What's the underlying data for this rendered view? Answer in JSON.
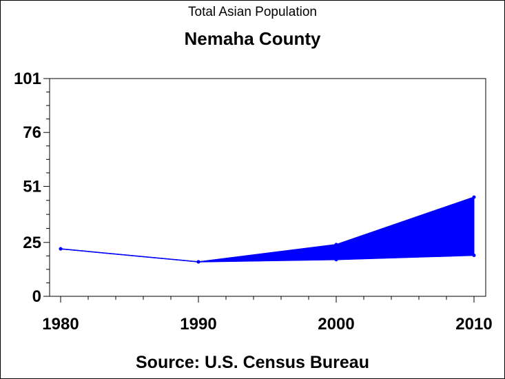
{
  "chart_data": {
    "type": "area",
    "title": "Total Asian Population",
    "subtitle": "Nemaha County",
    "source": "Source: U.S. Census Bureau",
    "x": [
      1980,
      1990,
      2000,
      2010
    ],
    "xticks": [
      "1980",
      "1990",
      "2000",
      "2010"
    ],
    "yticks": [
      "0",
      "25",
      "51",
      "76",
      "101"
    ],
    "ylim": [
      0,
      101
    ],
    "series": [
      {
        "values": [
          22,
          16,
          24,
          46
        ]
      },
      {
        "values": [
          22,
          16,
          17,
          19
        ]
      }
    ],
    "band_from": 1990,
    "color": "#0000ff",
    "grid": false
  }
}
